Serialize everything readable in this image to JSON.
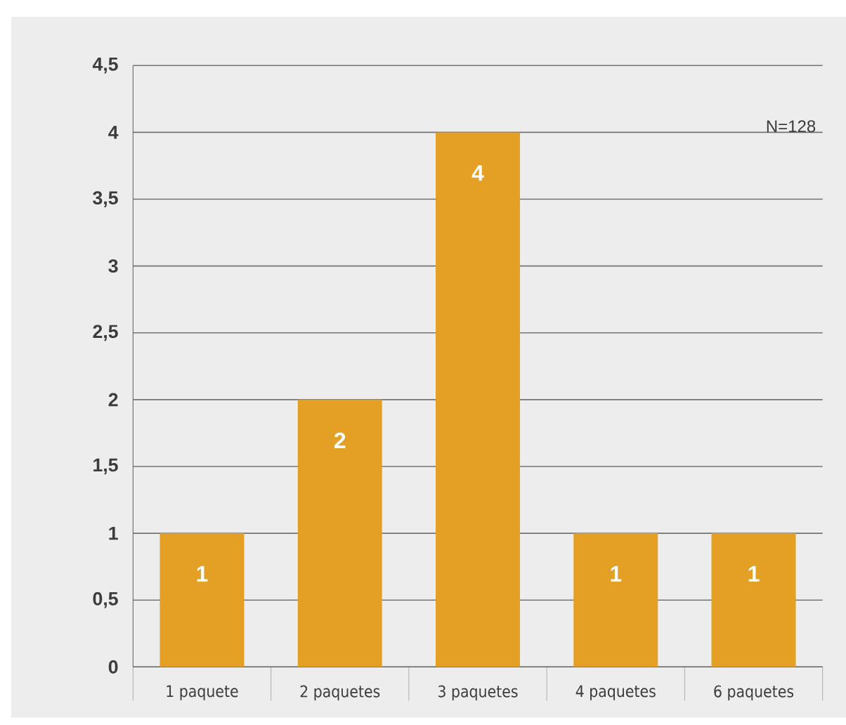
{
  "chart_data": {
    "type": "bar",
    "categories": [
      "1 paquete",
      "2 paquetes",
      "3 paquetes",
      "4 paquetes",
      "6 paquetes"
    ],
    "values": [
      1,
      2,
      4,
      1,
      1
    ],
    "color": "#e3a025",
    "data_labels": true,
    "grid": "y",
    "ylim": [
      0,
      4.5
    ],
    "yticks": [
      0,
      {
        "value": 0.5,
        "label": "0,5"
      },
      1,
      {
        "value": 1.5,
        "label": "1,5"
      },
      2,
      {
        "value": 2.5,
        "label": "2,5"
      },
      3,
      {
        "value": 3.5,
        "label": "3,5"
      },
      4,
      {
        "value": 4.5,
        "label": "4,5"
      }
    ],
    "annotations": [
      "N=128"
    ]
  }
}
